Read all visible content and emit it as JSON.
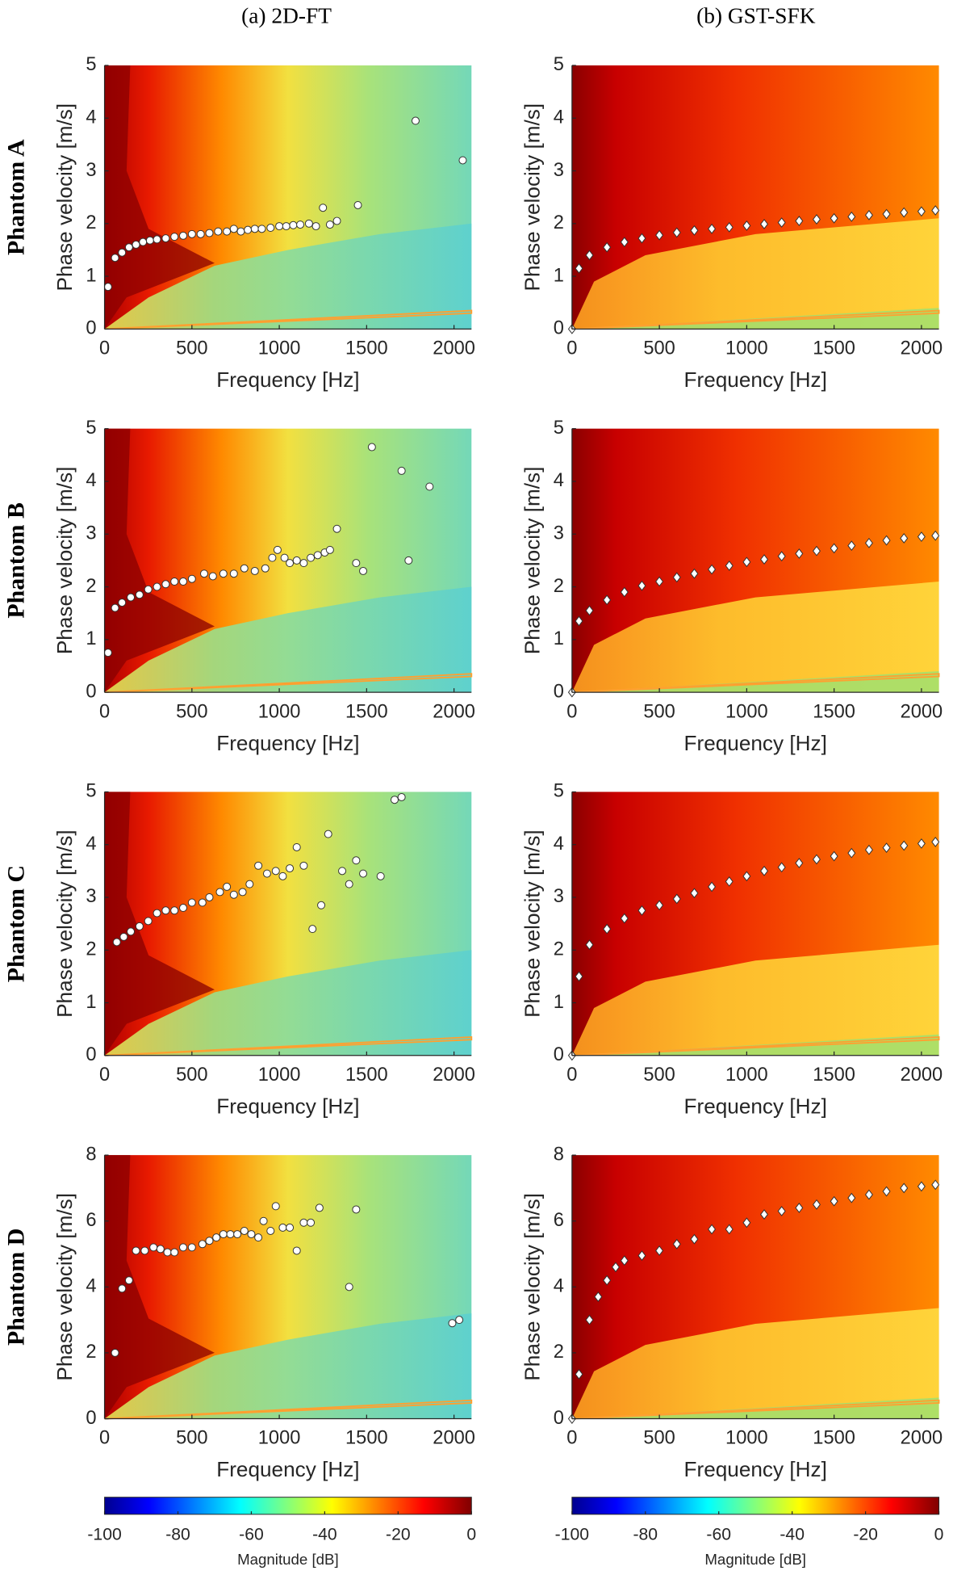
{
  "figure": {
    "column_titles": [
      "(a) 2D-FT",
      "(b) GST-SFK"
    ],
    "row_labels": [
      "Phantom A",
      "Phantom B",
      "Phantom C",
      "Phantom D"
    ],
    "colorbars": [
      {
        "label": "Magnitude [dB]",
        "lim": [
          -100,
          0
        ],
        "ticks": [
          -100,
          -80,
          -60,
          -40,
          -20,
          0
        ]
      },
      {
        "label": "Magnitude [dB]",
        "lim": [
          -100,
          0
        ],
        "ticks": [
          -100,
          -80,
          -60,
          -40,
          -20,
          0
        ]
      }
    ]
  },
  "chart_data": [
    {
      "type": "scatter",
      "marker": "circle",
      "color": "#ffffff",
      "x_label": "Frequency [Hz]",
      "y_label": "Phase velocity [m/s]",
      "xlim": [
        0,
        2100
      ],
      "ylim": [
        0,
        5
      ],
      "xticks": [
        0,
        500,
        1000,
        1500,
        2000
      ],
      "yticks": [
        0,
        1,
        2,
        3,
        4,
        5
      ],
      "x": [
        20,
        60,
        100,
        140,
        180,
        220,
        260,
        300,
        350,
        400,
        450,
        500,
        550,
        600,
        650,
        700,
        740,
        780,
        820,
        860,
        900,
        950,
        1000,
        1040,
        1080,
        1120,
        1170,
        1210,
        1250,
        1290,
        1330,
        1450,
        1780,
        2050
      ],
      "y": [
        0.8,
        1.35,
        1.45,
        1.55,
        1.6,
        1.65,
        1.68,
        1.7,
        1.72,
        1.75,
        1.77,
        1.8,
        1.8,
        1.82,
        1.85,
        1.85,
        1.9,
        1.85,
        1.88,
        1.9,
        1.9,
        1.92,
        1.95,
        1.95,
        1.97,
        1.98,
        2.0,
        1.95,
        2.3,
        1.98,
        2.05,
        2.35,
        3.95,
        3.2
      ]
    },
    {
      "type": "scatter",
      "marker": "diamond",
      "color": "#ffffff",
      "x_label": "Frequency [Hz]",
      "y_label": "Phase velocity [m/s]",
      "xlim": [
        0,
        2100
      ],
      "ylim": [
        0,
        5
      ],
      "xticks": [
        0,
        500,
        1000,
        1500,
        2000
      ],
      "yticks": [
        0,
        1,
        2,
        3,
        4,
        5
      ],
      "x": [
        0,
        40,
        100,
        200,
        300,
        400,
        500,
        600,
        700,
        800,
        900,
        1000,
        1100,
        1200,
        1300,
        1400,
        1500,
        1600,
        1700,
        1800,
        1900,
        2000,
        2080
      ],
      "y": [
        0,
        1.15,
        1.4,
        1.55,
        1.65,
        1.72,
        1.78,
        1.83,
        1.87,
        1.9,
        1.93,
        1.96,
        1.99,
        2.02,
        2.05,
        2.08,
        2.1,
        2.13,
        2.16,
        2.18,
        2.21,
        2.23,
        2.25
      ]
    },
    {
      "type": "scatter",
      "marker": "circle",
      "color": "#ffffff",
      "x_label": "Frequency [Hz]",
      "y_label": "Phase velocity [m/s]",
      "xlim": [
        0,
        2100
      ],
      "ylim": [
        0,
        5
      ],
      "xticks": [
        0,
        500,
        1000,
        1500,
        2000
      ],
      "yticks": [
        0,
        1,
        2,
        3,
        4,
        5
      ],
      "x": [
        20,
        60,
        100,
        150,
        200,
        250,
        300,
        350,
        400,
        450,
        500,
        570,
        620,
        680,
        740,
        800,
        860,
        920,
        960,
        990,
        1030,
        1060,
        1100,
        1140,
        1180,
        1220,
        1260,
        1290,
        1330,
        1440,
        1480,
        1530,
        1700,
        1740,
        1860
      ],
      "y": [
        0.75,
        1.6,
        1.7,
        1.8,
        1.85,
        1.95,
        2.0,
        2.05,
        2.1,
        2.1,
        2.15,
        2.25,
        2.2,
        2.25,
        2.25,
        2.35,
        2.3,
        2.35,
        2.55,
        2.7,
        2.55,
        2.45,
        2.5,
        2.45,
        2.55,
        2.6,
        2.65,
        2.7,
        3.1,
        2.45,
        2.3,
        4.65,
        4.2,
        2.5,
        3.9
      ]
    },
    {
      "type": "scatter",
      "marker": "diamond",
      "color": "#ffffff",
      "x_label": "Frequency [Hz]",
      "y_label": "Phase velocity [m/s]",
      "xlim": [
        0,
        2100
      ],
      "ylim": [
        0,
        5
      ],
      "xticks": [
        0,
        500,
        1000,
        1500,
        2000
      ],
      "yticks": [
        0,
        1,
        2,
        3,
        4,
        5
      ],
      "x": [
        0,
        40,
        100,
        200,
        300,
        400,
        500,
        600,
        700,
        800,
        900,
        1000,
        1100,
        1200,
        1300,
        1400,
        1500,
        1600,
        1700,
        1800,
        1900,
        2000,
        2080
      ],
      "y": [
        0,
        1.35,
        1.55,
        1.75,
        1.9,
        2.02,
        2.1,
        2.18,
        2.25,
        2.33,
        2.4,
        2.47,
        2.52,
        2.58,
        2.63,
        2.68,
        2.73,
        2.78,
        2.83,
        2.88,
        2.92,
        2.95,
        2.97
      ]
    },
    {
      "type": "scatter",
      "marker": "circle",
      "color": "#ffffff",
      "x_label": "Frequency [Hz]",
      "y_label": "Phase velocity [m/s]",
      "xlim": [
        0,
        2100
      ],
      "ylim": [
        0,
        5
      ],
      "xticks": [
        0,
        500,
        1000,
        1500,
        2000
      ],
      "yticks": [
        0,
        1,
        2,
        3,
        4,
        5
      ],
      "x": [
        70,
        110,
        150,
        200,
        250,
        300,
        350,
        400,
        450,
        500,
        560,
        600,
        660,
        700,
        740,
        790,
        830,
        880,
        930,
        980,
        1020,
        1060,
        1100,
        1140,
        1190,
        1240,
        1280,
        1360,
        1400,
        1440,
        1480,
        1580,
        1660,
        1700
      ],
      "y": [
        2.15,
        2.25,
        2.35,
        2.45,
        2.55,
        2.7,
        2.75,
        2.75,
        2.8,
        2.9,
        2.9,
        3.0,
        3.1,
        3.2,
        3.05,
        3.1,
        3.25,
        3.6,
        3.45,
        3.5,
        3.4,
        3.55,
        3.95,
        3.6,
        2.4,
        2.85,
        4.2,
        3.5,
        3.25,
        3.7,
        3.45,
        3.4,
        4.85,
        4.9
      ]
    },
    {
      "type": "scatter",
      "marker": "diamond",
      "color": "#ffffff",
      "x_label": "Frequency [Hz]",
      "y_label": "Phase velocity [m/s]",
      "xlim": [
        0,
        2100
      ],
      "ylim": [
        0,
        5
      ],
      "xticks": [
        0,
        500,
        1000,
        1500,
        2000
      ],
      "yticks": [
        0,
        1,
        2,
        3,
        4,
        5
      ],
      "x": [
        0,
        40,
        100,
        200,
        300,
        400,
        500,
        600,
        700,
        800,
        900,
        1000,
        1100,
        1200,
        1300,
        1400,
        1500,
        1600,
        1700,
        1800,
        1900,
        2000,
        2080
      ],
      "y": [
        0,
        1.5,
        2.1,
        2.4,
        2.6,
        2.75,
        2.85,
        2.97,
        3.08,
        3.2,
        3.3,
        3.4,
        3.5,
        3.57,
        3.65,
        3.72,
        3.78,
        3.84,
        3.9,
        3.94,
        3.98,
        4.02,
        4.05
      ]
    },
    {
      "type": "scatter",
      "marker": "circle",
      "color": "#ffffff",
      "x_label": "Frequency [Hz]",
      "y_label": "Phase velocity [m/s]",
      "xlim": [
        0,
        2100
      ],
      "ylim": [
        0,
        8
      ],
      "xticks": [
        0,
        500,
        1000,
        1500,
        2000
      ],
      "yticks": [
        0,
        2,
        4,
        6,
        8
      ],
      "x": [
        60,
        100,
        140,
        180,
        230,
        280,
        320,
        360,
        400,
        450,
        500,
        560,
        600,
        640,
        680,
        720,
        760,
        800,
        840,
        880,
        910,
        950,
        980,
        1020,
        1060,
        1100,
        1140,
        1180,
        1230,
        1400,
        1440,
        1990,
        2030
      ],
      "y": [
        2.0,
        3.95,
        4.2,
        5.1,
        5.1,
        5.2,
        5.15,
        5.05,
        5.05,
        5.2,
        5.2,
        5.3,
        5.4,
        5.5,
        5.6,
        5.6,
        5.6,
        5.7,
        5.6,
        5.5,
        6.0,
        5.7,
        6.45,
        5.8,
        5.8,
        5.1,
        5.95,
        5.95,
        6.4,
        4.0,
        6.35,
        2.9,
        3.0
      ]
    },
    {
      "type": "scatter",
      "marker": "diamond",
      "color": "#ffffff",
      "x_label": "Frequency [Hz]",
      "y_label": "Phase velocity [m/s]",
      "xlim": [
        0,
        2100
      ],
      "ylim": [
        0,
        8
      ],
      "xticks": [
        0,
        500,
        1000,
        1500,
        2000
      ],
      "yticks": [
        0,
        2,
        4,
        6,
        8
      ],
      "x": [
        0,
        40,
        100,
        150,
        200,
        250,
        300,
        400,
        500,
        600,
        700,
        800,
        900,
        1000,
        1100,
        1200,
        1300,
        1400,
        1500,
        1600,
        1700,
        1800,
        1900,
        2000,
        2080
      ],
      "y": [
        0,
        1.35,
        3.0,
        3.7,
        4.2,
        4.6,
        4.8,
        4.95,
        5.1,
        5.3,
        5.45,
        5.75,
        5.75,
        5.95,
        6.2,
        6.3,
        6.4,
        6.5,
        6.6,
        6.7,
        6.8,
        6.9,
        7.0,
        7.05,
        7.1
      ]
    }
  ]
}
